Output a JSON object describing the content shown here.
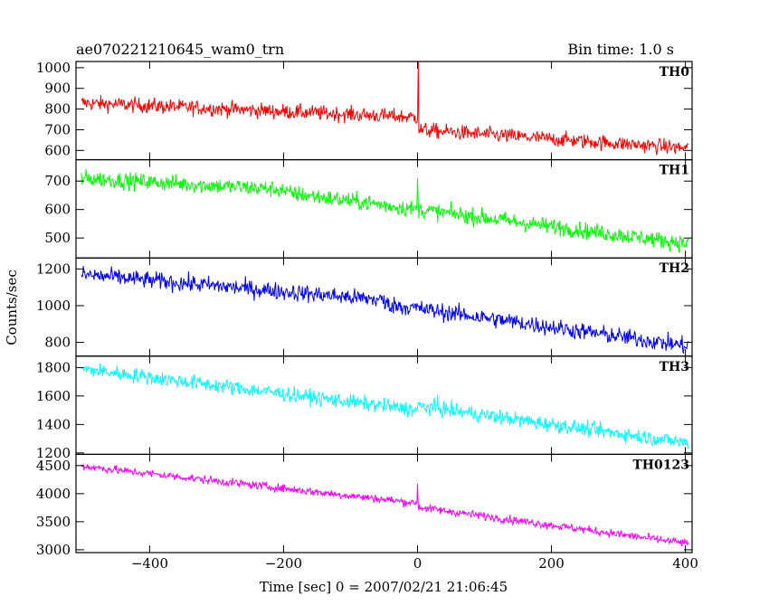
{
  "chart_data": {
    "type": "line",
    "title": "ae070221210645_wam0_trn",
    "bin_time_label": "Bin time: 1.0 s",
    "xlabel": "Time [sec] 0 = 2007/02/21 21:06:45",
    "ylabel": "Counts/sec",
    "xlim": [
      -510,
      410
    ],
    "x_ticks": [
      -400,
      -200,
      0,
      200,
      400
    ],
    "x_tick_labels": [
      "−400",
      "−200",
      "0",
      "200",
      "400"
    ],
    "x_range": [
      -502,
      404
    ],
    "grid": false,
    "panels": [
      {
        "name": "TH0",
        "color": "#ff0000",
        "ylim": [
          555,
          1030
        ],
        "yticks": [
          600,
          700,
          800,
          900,
          1000
        ],
        "start": 830,
        "end": 610,
        "break_x": 0,
        "break_y": 760,
        "after_y": 700,
        "noise": 35,
        "spike": {
          "x": 1,
          "y": 1030
        }
      },
      {
        "name": "TH1",
        "color": "#00ff00",
        "ylim": [
          430,
          775
        ],
        "yticks": [
          500,
          600,
          700
        ],
        "start": 710,
        "end": 480,
        "break_x": -200,
        "break_y": 670,
        "after_y": 660,
        "noise": 28,
        "spike": {
          "x": 0,
          "y": 710
        }
      },
      {
        "name": "TH2",
        "color": "#0000ff",
        "ylim": [
          725,
          1260
        ],
        "yticks": [
          800,
          1000,
          1200
        ],
        "start": 1170,
        "end": 780,
        "break_x": -50,
        "break_y": 1030,
        "after_y": 1010,
        "noise": 45,
        "spike": {
          "x": 0,
          "y": 1000
        }
      },
      {
        "name": "TH3",
        "color": "#00ffff",
        "ylim": [
          1190,
          1880
        ],
        "yticks": [
          1200,
          1400,
          1600,
          1800
        ],
        "start": 1790,
        "end": 1270,
        "break_x": 0,
        "break_y": 1500,
        "after_y": 1530,
        "noise": 50,
        "spike": {
          "x": 30,
          "y": 1610
        }
      },
      {
        "name": "TH0123",
        "color": "#ff00ff",
        "ylim": [
          2950,
          4700
        ],
        "yticks": [
          3000,
          3500,
          4000,
          4500
        ],
        "start": 4490,
        "end": 3110,
        "break_x": 0,
        "break_y": 3830,
        "after_y": 3760,
        "noise": 70,
        "spike": {
          "x": 0,
          "y": 4180
        }
      }
    ]
  }
}
